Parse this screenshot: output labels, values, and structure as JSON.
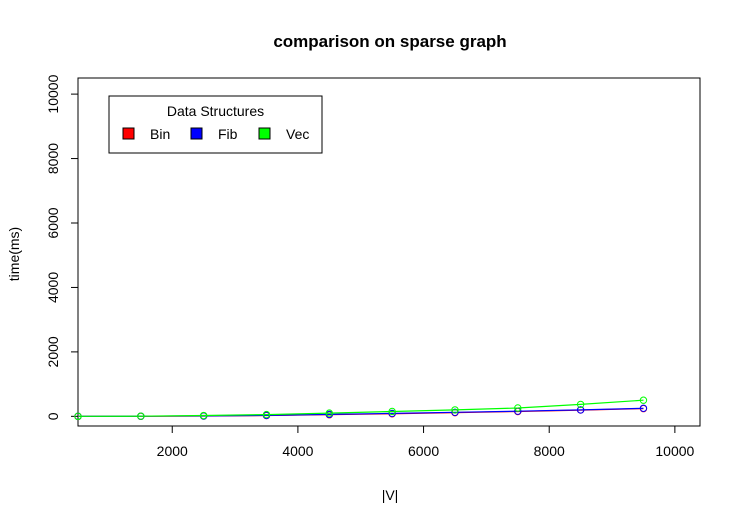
{
  "chart_data": {
    "type": "line",
    "title": "comparison on sparse graph",
    "xlabel": "|V|",
    "ylabel": "time(ms)",
    "xlim": [
      500,
      10400
    ],
    "ylim": [
      -300,
      10500
    ],
    "x_ticks": [
      2000,
      4000,
      6000,
      8000,
      10000
    ],
    "y_ticks": [
      0,
      2000,
      4000,
      6000,
      8000,
      10000
    ],
    "legend": {
      "title": "Data Structures",
      "placement": "top-left",
      "entries": [
        "Bin",
        "Fib",
        "Vec"
      ]
    },
    "colors": {
      "Bin": "#ff0000",
      "Fib": "#0000ff",
      "Vec": "#00ff00"
    },
    "series": [
      {
        "name": "Bin",
        "x": [
          500,
          1500,
          2500,
          3500,
          4500,
          5500,
          6500,
          7500,
          8500,
          9500
        ],
        "values": [
          0,
          2,
          10,
          25,
          50,
          80,
          115,
          150,
          195,
          240
        ]
      },
      {
        "name": "Fib",
        "x": [
          500,
          1500,
          2500,
          3500,
          4500,
          5500,
          6500,
          7500,
          8500,
          9500
        ],
        "values": [
          0,
          3,
          12,
          30,
          60,
          90,
          125,
          160,
          200,
          250
        ]
      },
      {
        "name": "Vec",
        "x": [
          500,
          1500,
          2500,
          3500,
          4500,
          5500,
          6500,
          7500,
          8500,
          9500
        ],
        "values": [
          0,
          5,
          25,
          55,
          100,
          150,
          200,
          260,
          370,
          500
        ]
      }
    ]
  }
}
